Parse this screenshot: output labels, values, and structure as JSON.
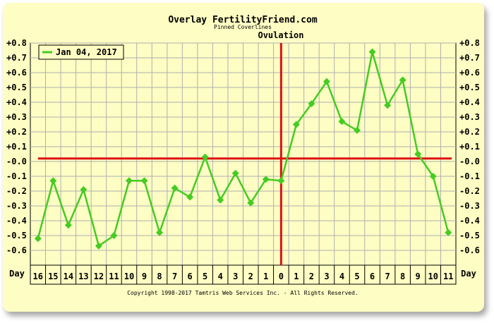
{
  "chart_data": {
    "type": "line",
    "title": "Overlay FertilityFriend.com",
    "subtitle": "Pinned Coverlines",
    "annotation": "Ovulation",
    "xlabel": "Day",
    "ylim": [
      -0.7,
      0.8
    ],
    "y_ticks": [
      "+0.8",
      "+0.7",
      "+0.6",
      "+0.5",
      "+0.4",
      "+0.3",
      "+0.2",
      "+0.1",
      "-0.0",
      "-0.1",
      "-0.2",
      "-0.3",
      "-0.4",
      "-0.5",
      "-0.6"
    ],
    "y_tick_values": [
      0.8,
      0.7,
      0.6,
      0.5,
      0.4,
      0.3,
      0.2,
      0.1,
      0.0,
      -0.1,
      -0.2,
      -0.3,
      -0.4,
      -0.5,
      -0.6
    ],
    "x_ticks": [
      "16",
      "15",
      "14",
      "13",
      "12",
      "11",
      "10",
      "9",
      "8",
      "7",
      "6",
      "5",
      "4",
      "3",
      "2",
      "1",
      "0",
      "1",
      "2",
      "3",
      "4",
      "5",
      "6",
      "7",
      "8",
      "9",
      "10",
      "11"
    ],
    "ovulation_index": 16,
    "coverline": 0.02,
    "series": [
      {
        "name": "Jan 04, 2017",
        "color": "#44cc22",
        "values": [
          -0.52,
          -0.13,
          -0.43,
          -0.19,
          -0.57,
          -0.5,
          -0.13,
          -0.13,
          -0.48,
          -0.18,
          -0.24,
          0.03,
          -0.26,
          -0.08,
          -0.28,
          -0.12,
          -0.13,
          0.25,
          0.39,
          0.54,
          0.27,
          0.21,
          0.74,
          0.38,
          0.55,
          0.05,
          -0.1,
          -0.48
        ]
      }
    ],
    "legend_position": "top-left",
    "grid": true,
    "colors": {
      "background": "#fdfdc4",
      "grid": "#b0b0b0",
      "marker_lines": "#dd1111"
    }
  },
  "footer": "Copyright 1998-2017 Tamtris Web Services Inc. - All Rights Reserved."
}
